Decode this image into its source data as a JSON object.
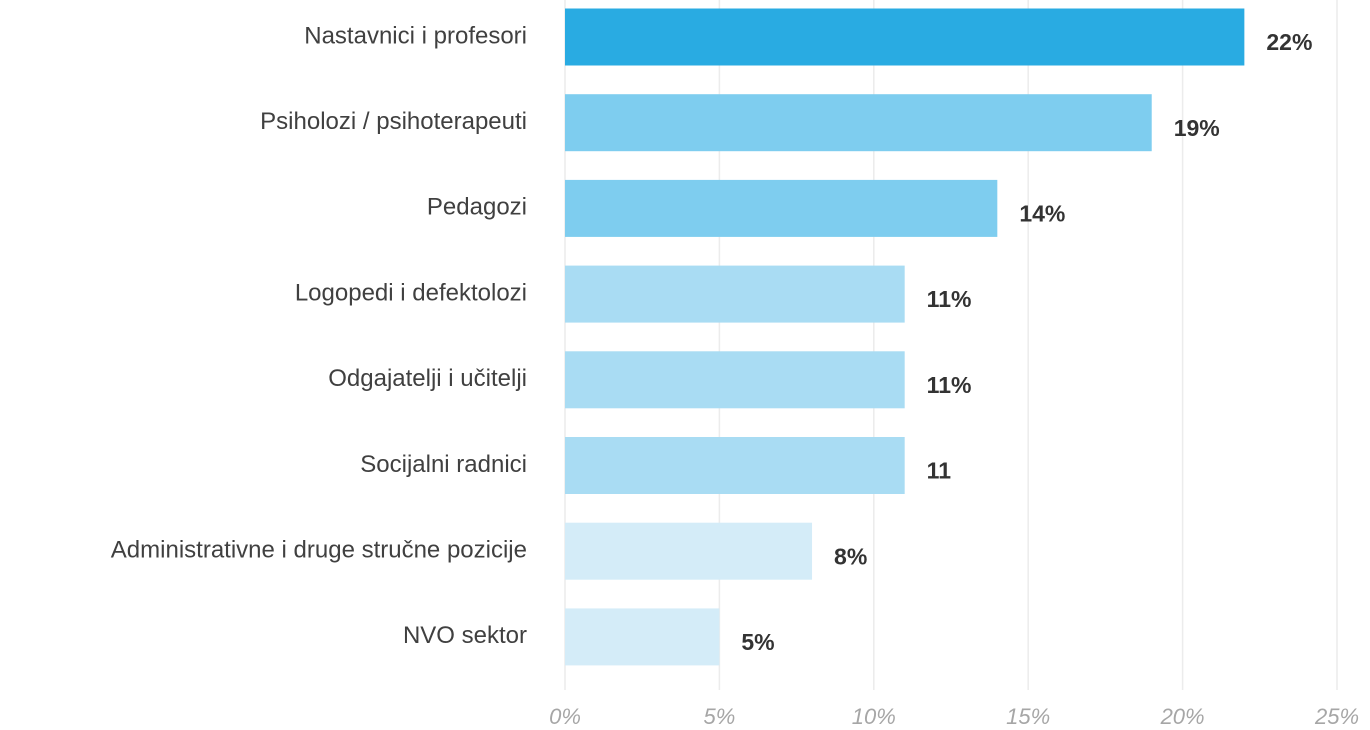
{
  "chart_data": {
    "type": "bar",
    "orientation": "horizontal",
    "categories": [
      "Nastavnici i profesori",
      "Psiholozi / psihoterapeuti",
      "Pedagozi",
      "Logopedi i defektolozi",
      "Odgajatelji i učitelji",
      "Socijalni radnici",
      "Administrativne i druge stručne pozicije",
      "NVO sektor"
    ],
    "values": [
      22,
      19,
      14,
      11,
      11,
      11,
      8,
      5
    ],
    "value_labels": [
      "22%",
      "19%",
      "14%",
      "11%",
      "11%",
      "11",
      "8%",
      "5%"
    ],
    "colors": [
      "#29abe2",
      "#7ecdef",
      "#7ecdef",
      "#a9dcf3",
      "#a9dcf3",
      "#a9dcf3",
      "#d4ecf8",
      "#d4ecf8"
    ],
    "xlim": [
      0,
      25
    ],
    "xticks": [
      {
        "value": 0,
        "label": "0%"
      },
      {
        "value": 5,
        "label": "5%"
      },
      {
        "value": 10,
        "label": "10%"
      },
      {
        "value": 15,
        "label": "15%"
      },
      {
        "value": 20,
        "label": "20%"
      },
      {
        "value": 25,
        "label": "25%"
      }
    ],
    "grid": true
  }
}
